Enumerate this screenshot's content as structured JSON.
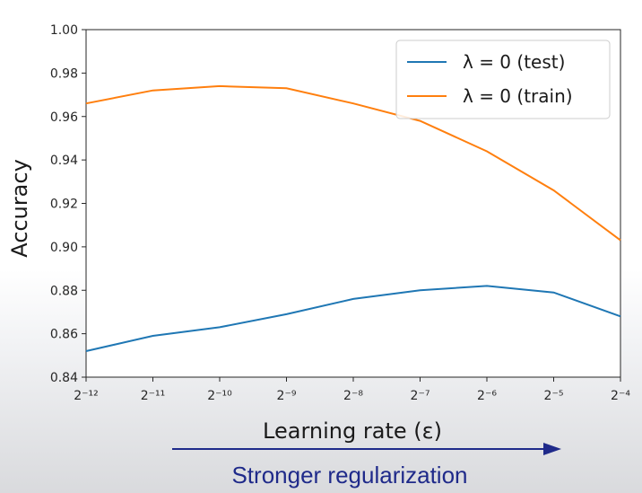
{
  "chart_data": {
    "type": "line",
    "xlabel": "Learning rate (ε)",
    "ylabel": "Accuracy",
    "x_exponents": [
      -12,
      -11,
      -10,
      -9,
      -8,
      -7,
      -6,
      -5,
      -4
    ],
    "x_tick_labels": [
      "2⁻¹²",
      "2⁻¹¹",
      "2⁻¹⁰",
      "2⁻⁹",
      "2⁻⁸",
      "2⁻⁷",
      "2⁻⁶",
      "2⁻⁵",
      "2⁻⁴"
    ],
    "xscale": "log2",
    "ylim": [
      0.84,
      1.0
    ],
    "y_ticks": [
      "0.84",
      "0.86",
      "0.88",
      "0.90",
      "0.92",
      "0.94",
      "0.96",
      "0.98",
      "1.00"
    ],
    "grid": false,
    "legend_position": "top-right",
    "series": [
      {
        "name": "λ = 0 (test)",
        "color": "#1f77b4",
        "values": [
          0.852,
          0.859,
          0.863,
          0.869,
          0.876,
          0.88,
          0.882,
          0.879,
          0.868
        ]
      },
      {
        "name": "λ = 0 (train)",
        "color": "#ff7f0e",
        "values": [
          0.966,
          0.972,
          0.974,
          0.973,
          0.966,
          0.958,
          0.944,
          0.926,
          0.903
        ]
      }
    ]
  },
  "annotation": {
    "text": "Stronger regularization",
    "color": "#1f2a8a",
    "direction": "right"
  }
}
